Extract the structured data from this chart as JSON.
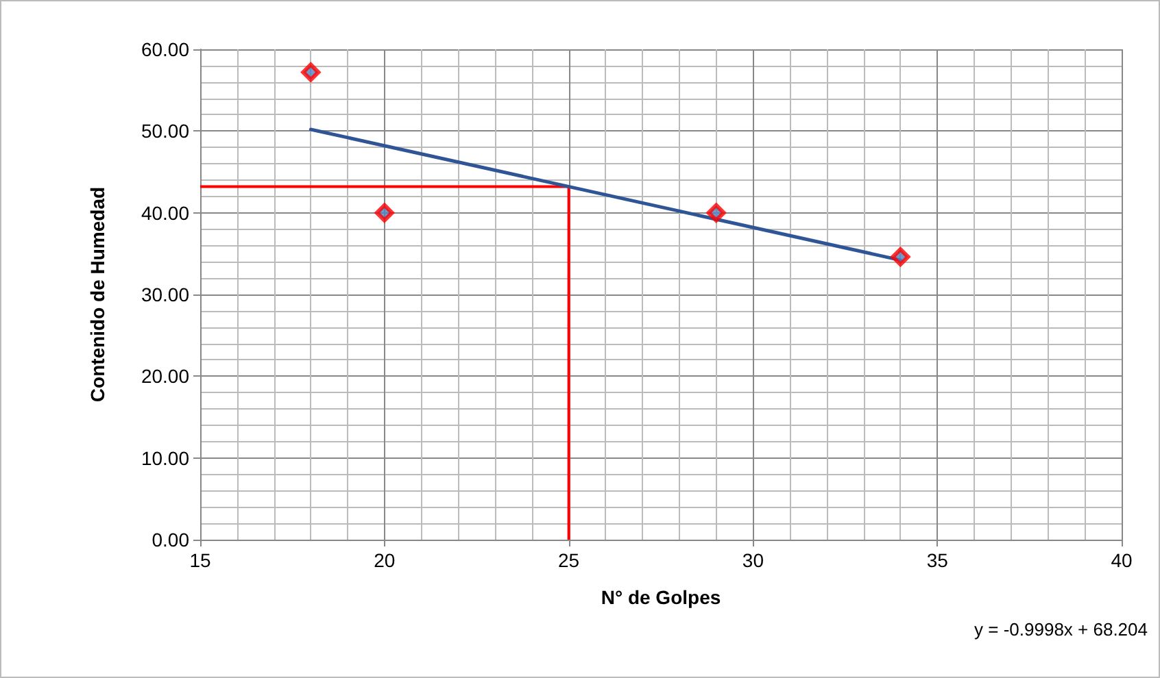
{
  "chart_data": {
    "type": "scatter",
    "xlabel": "N° de Golpes",
    "ylabel": "Contenido de Humedad",
    "annotations": [
      "y = -0.9998x + 68.204"
    ],
    "series": [
      {
        "color": "#ff0000",
        "marker": "diamond",
        "x": [
          18,
          20,
          29,
          34
        ],
        "values": [
          57.2,
          40.0,
          40.0,
          34.6
        ]
      },
      {
        "type": "line",
        "color": "#2f5597",
        "marker": "none",
        "x": [
          18,
          34
        ],
        "values": [
          50.2,
          34.2
        ]
      }
    ],
    "xlim": [
      15,
      40
    ],
    "xticks": [
      15,
      20,
      25,
      30,
      35,
      40
    ],
    "ylim": [
      0,
      60
    ],
    "yticks": [
      {
        "value": 0,
        "label": "0.00"
      },
      {
        "value": 10,
        "label": "10.00"
      },
      {
        "value": 20,
        "label": "20.00"
      },
      {
        "value": 30,
        "label": "30.00"
      },
      {
        "value": 40,
        "label": "40.00"
      },
      {
        "value": 50,
        "label": "50.00"
      },
      {
        "value": 60,
        "label": "60.00"
      }
    ],
    "ref_lines": [
      {
        "axis": "x",
        "value": 25,
        "color": "#ff0000"
      },
      {
        "axis": "y",
        "value": 43.2,
        "color": "#ff0000"
      }
    ],
    "grid": true
  }
}
